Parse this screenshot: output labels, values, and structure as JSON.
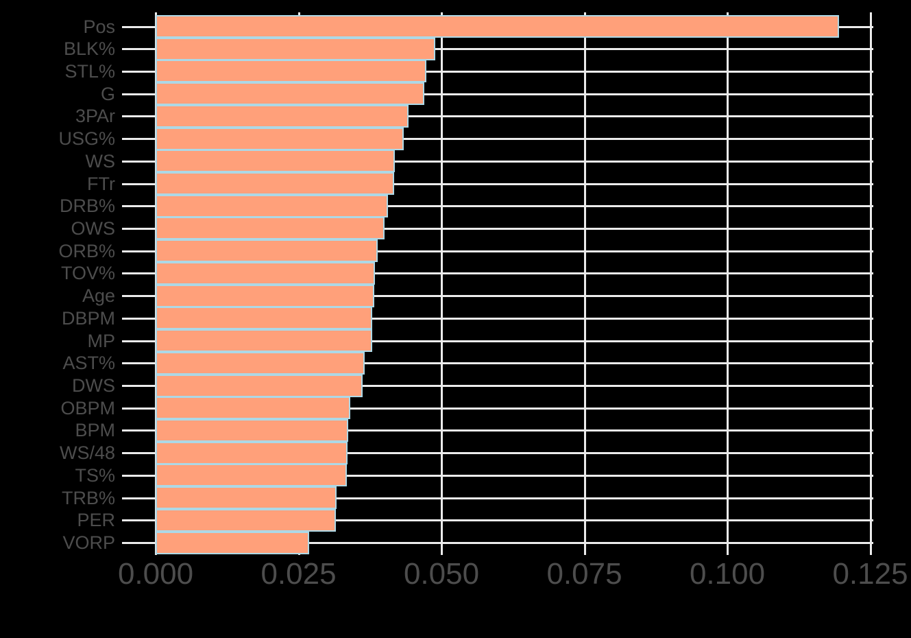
{
  "chart_data": {
    "type": "bar",
    "orientation": "horizontal",
    "title": "",
    "xlabel": "",
    "ylabel": "",
    "xlim": [
      0,
      0.125
    ],
    "x_ticks": [
      "0.000",
      "0.025",
      "0.050",
      "0.075",
      "0.100",
      "0.125"
    ],
    "x_tick_values": [
      0,
      0.025,
      0.05,
      0.075,
      0.1,
      0.125
    ],
    "grid": true,
    "legend": null,
    "colors": {
      "bar_fill": "#ffa07a",
      "bar_border": "#add8e6",
      "background": "#000000",
      "grid": "#ebebeb",
      "text": "#4d4d4d"
    },
    "categories": [
      "Pos",
      "BLK%",
      "STL%",
      "G",
      "3PAr",
      "USG%",
      "WS",
      "FTr",
      "DRB%",
      "OWS",
      "ORB%",
      "TOV%",
      "Age",
      "DBPM",
      "MP",
      "AST%",
      "DWS",
      "OBPM",
      "BPM",
      "WS/48",
      "TS%",
      "TRB%",
      "PER",
      "VORP"
    ],
    "values": [
      0.1196,
      0.0489,
      0.0474,
      0.047,
      0.0443,
      0.0434,
      0.0418,
      0.0417,
      0.0407,
      0.04,
      0.0389,
      0.0384,
      0.0383,
      0.0379,
      0.0379,
      0.0366,
      0.0362,
      0.034,
      0.0337,
      0.0336,
      0.0335,
      0.0316,
      0.0315,
      0.0268
    ]
  }
}
